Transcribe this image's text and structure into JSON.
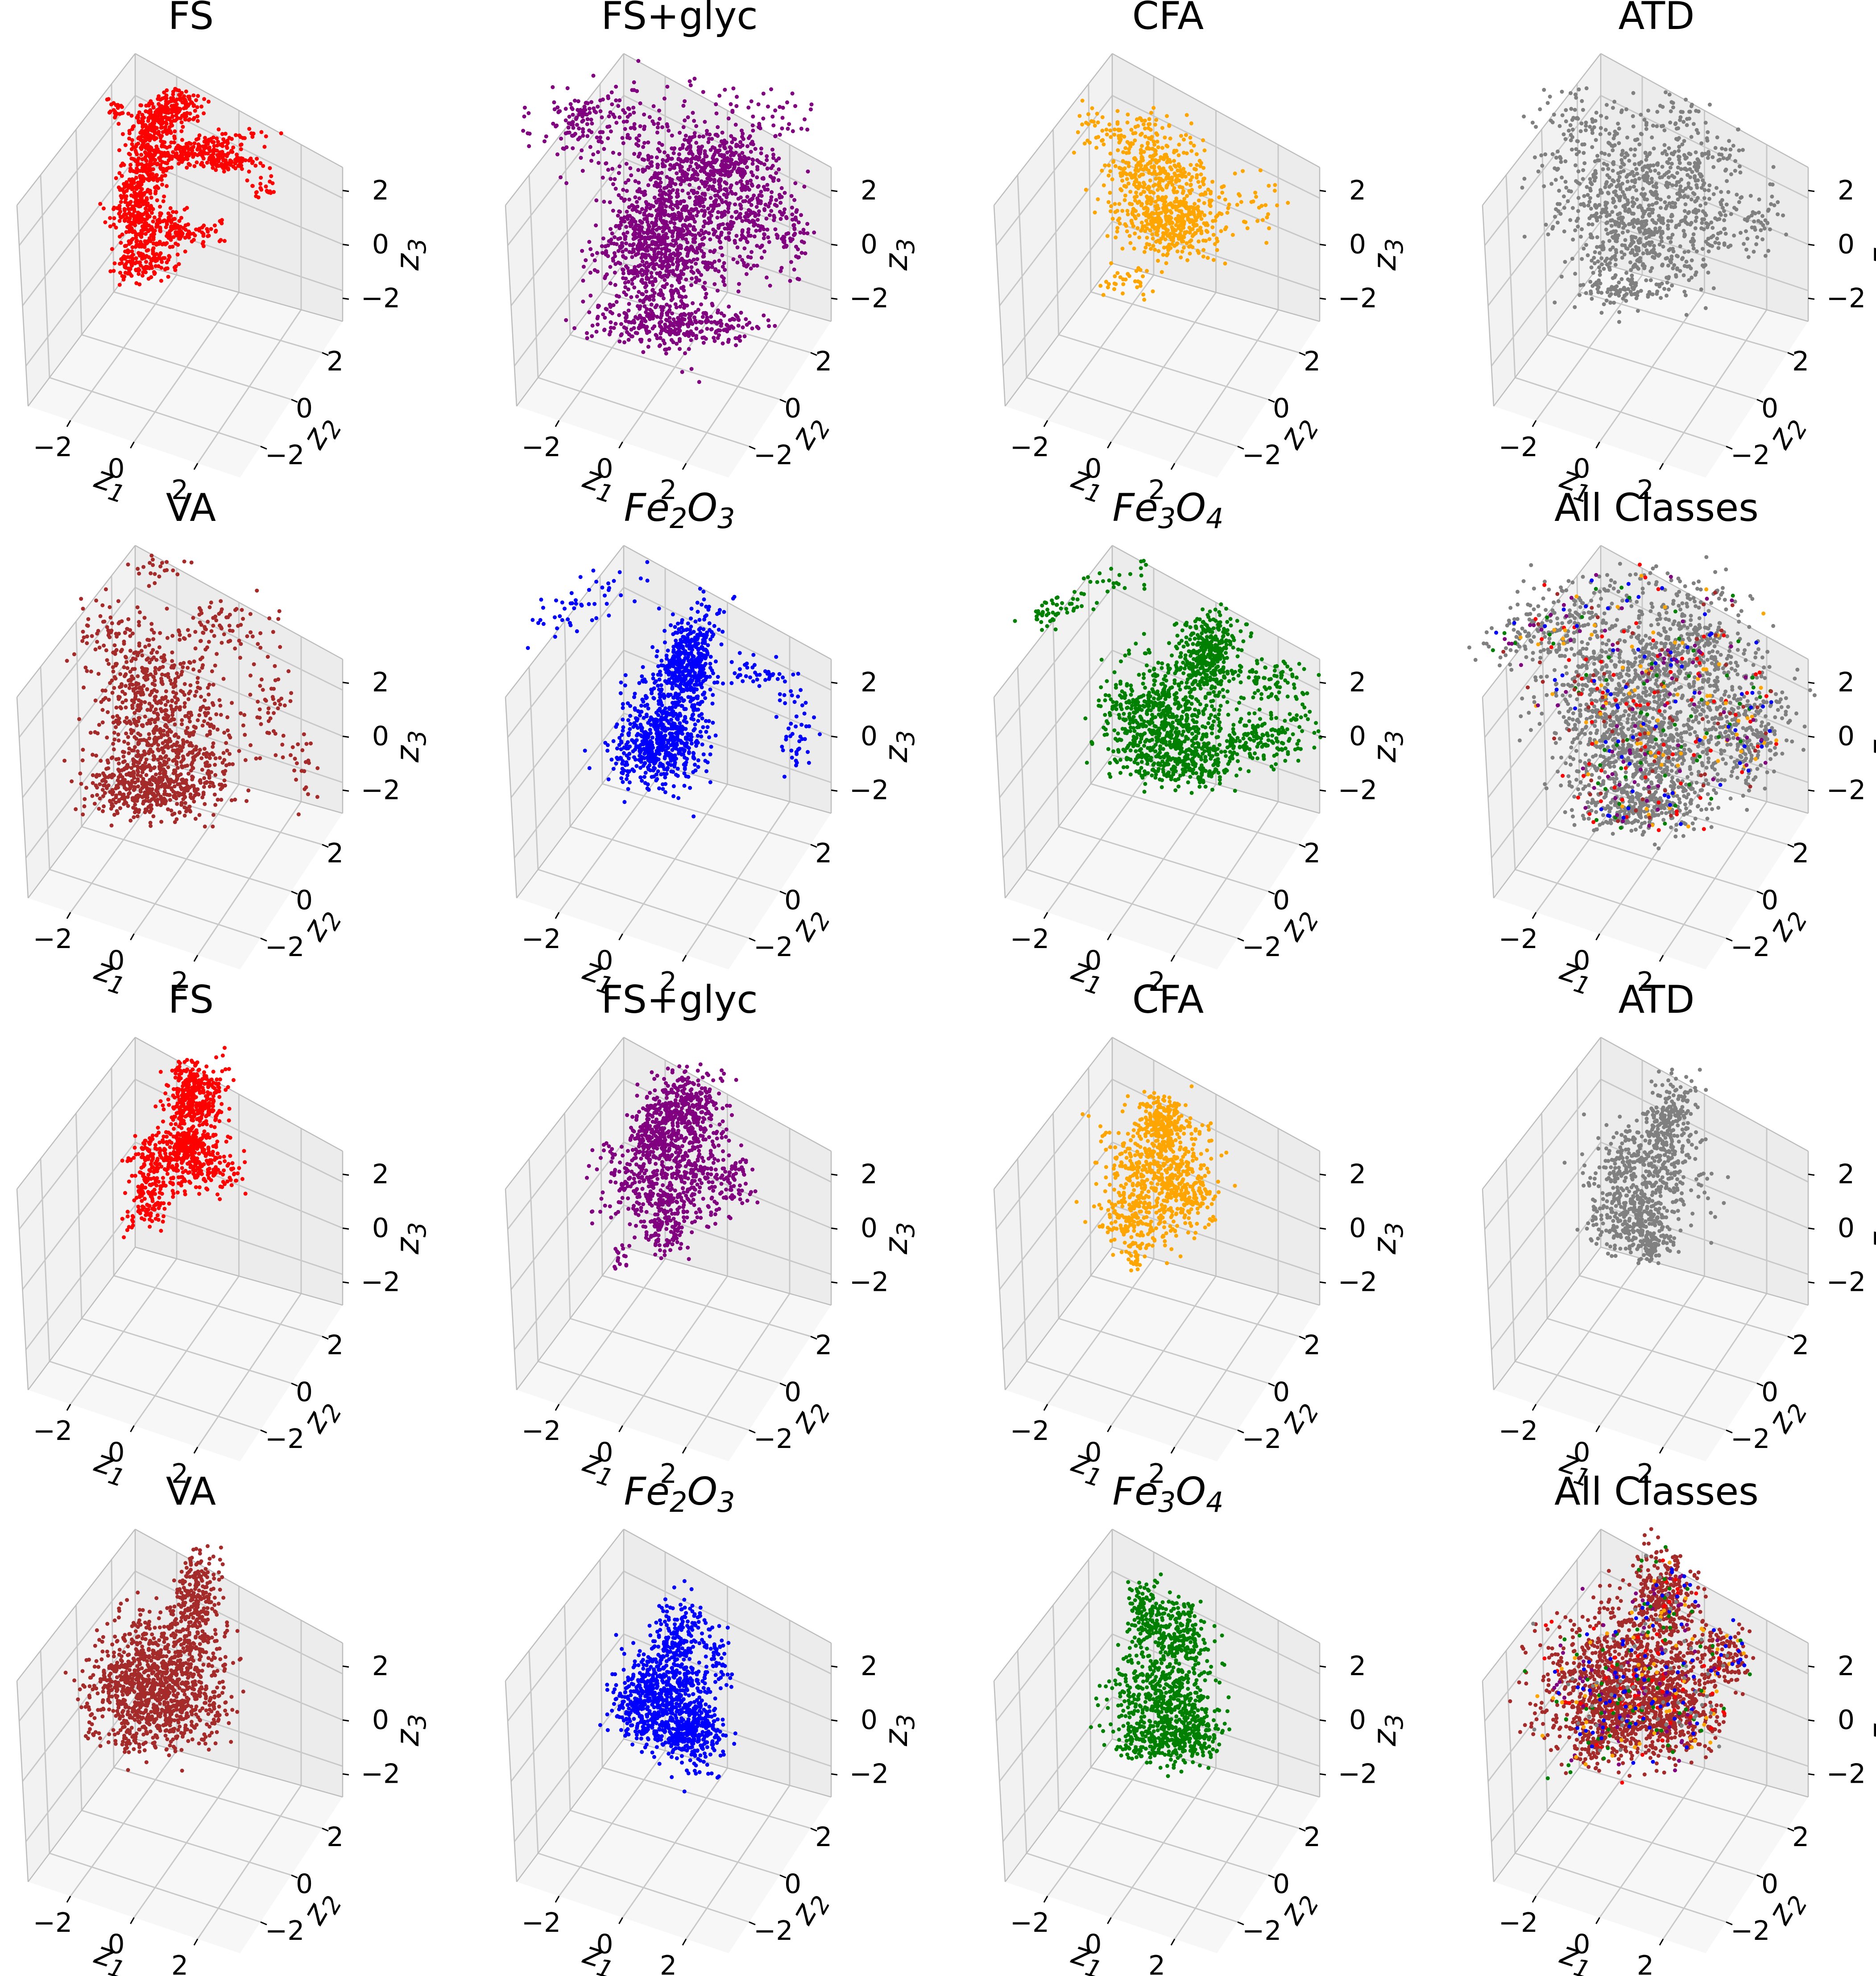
{
  "figure": {
    "rows": 4,
    "cols": 4
  },
  "chart_data": [
    {
      "type": "scatter",
      "projection": "3d",
      "title": "FS",
      "title_style": "normal",
      "color": "#ff0000",
      "shape": "fs_a",
      "xlabel": "z1",
      "ylabel": "z2",
      "zlabel": "z3",
      "xticks": [
        "−2",
        "0",
        "2"
      ],
      "yticks": [
        "−2",
        "0",
        "2"
      ],
      "zticks": [
        "−2",
        "0",
        "2"
      ],
      "xlim": [
        -3,
        3
      ],
      "ylim": [
        -3,
        3
      ],
      "zlim": [
        -3,
        3
      ]
    },
    {
      "type": "scatter",
      "projection": "3d",
      "title": "FS+glyc",
      "title_style": "normal",
      "color": "#800080",
      "shape": "glyc_a",
      "xlabel": "z1",
      "ylabel": "z2",
      "zlabel": "z3",
      "xticks": [
        "−2",
        "0",
        "2"
      ],
      "yticks": [
        "−2",
        "0",
        "2"
      ],
      "zticks": [
        "−2",
        "0",
        "2"
      ],
      "xlim": [
        -3,
        3
      ],
      "ylim": [
        -3,
        3
      ],
      "zlim": [
        -3,
        3
      ]
    },
    {
      "type": "scatter",
      "projection": "3d",
      "title": "CFA",
      "title_style": "normal",
      "color": "#ffa500",
      "shape": "cfa_a",
      "xlabel": "z1",
      "ylabel": "z2",
      "zlabel": "z3",
      "xticks": [
        "−2",
        "0",
        "2"
      ],
      "yticks": [
        "−2",
        "0",
        "2"
      ],
      "zticks": [
        "−2",
        "0",
        "2"
      ],
      "xlim": [
        -3,
        3
      ],
      "ylim": [
        -3,
        3
      ],
      "zlim": [
        -3,
        3
      ]
    },
    {
      "type": "scatter",
      "projection": "3d",
      "title": "ATD",
      "title_style": "normal",
      "color": "#808080",
      "shape": "atd_a",
      "xlabel": "z1",
      "ylabel": "z2",
      "zlabel": "–",
      "xticks": [
        "−2",
        "0",
        "2"
      ],
      "yticks": [
        "−2",
        "0",
        "2"
      ],
      "zticks": [
        "−2",
        "0",
        "2"
      ],
      "xlim": [
        -3,
        3
      ],
      "ylim": [
        -3,
        3
      ],
      "zlim": [
        -3,
        3
      ]
    },
    {
      "type": "scatter",
      "projection": "3d",
      "title": "VA",
      "title_style": "normal",
      "color": "#a52a2a",
      "shape": "va_a",
      "xlabel": "z1",
      "ylabel": "z2",
      "zlabel": "z3",
      "xticks": [
        "−2",
        "0",
        "2"
      ],
      "yticks": [
        "−2",
        "0",
        "2"
      ],
      "zticks": [
        "−2",
        "0",
        "2"
      ],
      "xlim": [
        -3,
        3
      ],
      "ylim": [
        -3,
        3
      ],
      "zlim": [
        -3,
        3
      ]
    },
    {
      "type": "scatter",
      "projection": "3d",
      "title": "Fe2O3",
      "title_style": "italic",
      "color": "#0000ff",
      "shape": "fe2_a",
      "xlabel": "z1",
      "ylabel": "z2",
      "zlabel": "z3",
      "xticks": [
        "−2",
        "0",
        "2"
      ],
      "yticks": [
        "−2",
        "0",
        "2"
      ],
      "zticks": [
        "−2",
        "0",
        "2"
      ],
      "xlim": [
        -3,
        3
      ],
      "ylim": [
        -3,
        3
      ],
      "zlim": [
        -3,
        3
      ]
    },
    {
      "type": "scatter",
      "projection": "3d",
      "title": "Fe3O4",
      "title_style": "italic",
      "color": "#008000",
      "shape": "fe3_a",
      "xlabel": "z1",
      "ylabel": "z2",
      "zlabel": "z3",
      "xticks": [
        "−2",
        "0",
        "2"
      ],
      "yticks": [
        "−2",
        "0",
        "2"
      ],
      "zticks": [
        "−2",
        "0",
        "2"
      ],
      "xlim": [
        -3,
        3
      ],
      "ylim": [
        -3,
        3
      ],
      "zlim": [
        -3,
        3
      ]
    },
    {
      "type": "scatter",
      "projection": "3d",
      "title": "All Classes",
      "title_style": "normal",
      "color": "#808080",
      "mix": [
        "#800080",
        "#ff0000",
        "#0000ff",
        "#008000",
        "#ffa500",
        "#a52a2a"
      ],
      "shape": "all_a",
      "xlabel": "z1",
      "ylabel": "z2",
      "zlabel": "–",
      "xticks": [
        "−2",
        "0",
        "2"
      ],
      "yticks": [
        "−2",
        "0",
        "2"
      ],
      "zticks": [
        "−2",
        "0",
        "2"
      ],
      "xlim": [
        -3,
        3
      ],
      "ylim": [
        -3,
        3
      ],
      "zlim": [
        -3,
        3
      ]
    },
    {
      "type": "scatter",
      "projection": "3d",
      "title": "FS",
      "title_style": "normal",
      "color": "#ff0000",
      "shape": "fs_b",
      "xlabel": "z1",
      "ylabel": "z2",
      "zlabel": "z3",
      "xticks": [
        "−2",
        "0",
        "2"
      ],
      "yticks": [
        "−2",
        "0",
        "2"
      ],
      "zticks": [
        "−2",
        "0",
        "2"
      ],
      "xlim": [
        -3,
        3
      ],
      "ylim": [
        -3,
        3
      ],
      "zlim": [
        -3,
        3
      ]
    },
    {
      "type": "scatter",
      "projection": "3d",
      "title": "FS+glyc",
      "title_style": "normal",
      "color": "#800080",
      "shape": "glyc_b",
      "xlabel": "z1",
      "ylabel": "z2",
      "zlabel": "z3",
      "xticks": [
        "−2",
        "0",
        "2"
      ],
      "yticks": [
        "−2",
        "0",
        "2"
      ],
      "zticks": [
        "−2",
        "0",
        "2"
      ],
      "xlim": [
        -3,
        3
      ],
      "ylim": [
        -3,
        3
      ],
      "zlim": [
        -3,
        3
      ]
    },
    {
      "type": "scatter",
      "projection": "3d",
      "title": "CFA",
      "title_style": "normal",
      "color": "#ffa500",
      "shape": "cfa_b",
      "xlabel": "z1",
      "ylabel": "z2",
      "zlabel": "z3",
      "xticks": [
        "−2",
        "0",
        "2"
      ],
      "yticks": [
        "−2",
        "0",
        "2"
      ],
      "zticks": [
        "−2",
        "0",
        "2"
      ],
      "xlim": [
        -3,
        3
      ],
      "ylim": [
        -3,
        3
      ],
      "zlim": [
        -3,
        3
      ]
    },
    {
      "type": "scatter",
      "projection": "3d",
      "title": "ATD",
      "title_style": "normal",
      "color": "#808080",
      "shape": "atd_b",
      "xlabel": "z1",
      "ylabel": "z2",
      "zlabel": "–",
      "xticks": [
        "−2",
        "0",
        "2"
      ],
      "yticks": [
        "−2",
        "0",
        "2"
      ],
      "zticks": [
        "−2",
        "0",
        "2"
      ],
      "xlim": [
        -3,
        3
      ],
      "ylim": [
        -3,
        3
      ],
      "zlim": [
        -3,
        3
      ]
    },
    {
      "type": "scatter",
      "projection": "3d",
      "title": "VA",
      "title_style": "normal",
      "color": "#a52a2a",
      "shape": "va_b",
      "xlabel": "z1",
      "ylabel": "z2",
      "zlabel": "z3",
      "xticks": [
        "−2",
        "0",
        "2"
      ],
      "yticks": [
        "−2",
        "0",
        "2"
      ],
      "zticks": [
        "−2",
        "0",
        "2"
      ],
      "xlim": [
        -3,
        3
      ],
      "ylim": [
        -3,
        3
      ],
      "zlim": [
        -3,
        3
      ]
    },
    {
      "type": "scatter",
      "projection": "3d",
      "title": "Fe2O3",
      "title_style": "italic",
      "color": "#0000ff",
      "shape": "fe2_b",
      "xlabel": "z1",
      "ylabel": "z2",
      "zlabel": "z3",
      "xticks": [
        "−2",
        "0",
        "2"
      ],
      "yticks": [
        "−2",
        "0",
        "2"
      ],
      "zticks": [
        "−2",
        "0",
        "2"
      ],
      "xlim": [
        -3,
        3
      ],
      "ylim": [
        -3,
        3
      ],
      "zlim": [
        -3,
        3
      ]
    },
    {
      "type": "scatter",
      "projection": "3d",
      "title": "Fe3O4",
      "title_style": "italic",
      "color": "#008000",
      "shape": "fe3_b",
      "xlabel": "z1",
      "ylabel": "z2",
      "zlabel": "z3",
      "xticks": [
        "−2",
        "0",
        "2"
      ],
      "yticks": [
        "−2",
        "0",
        "2"
      ],
      "zticks": [
        "−2",
        "0",
        "2"
      ],
      "xlim": [
        -3,
        3
      ],
      "ylim": [
        -3,
        3
      ],
      "zlim": [
        -3,
        3
      ]
    },
    {
      "type": "scatter",
      "projection": "3d",
      "title": "All Classes",
      "title_style": "normal",
      "color": "#a52a2a",
      "mix": [
        "#800080",
        "#ffa500",
        "#0000ff",
        "#008000",
        "#ff0000",
        "#808080"
      ],
      "shape": "all_b",
      "xlabel": "z1",
      "ylabel": "z2",
      "zlabel": "–",
      "xticks": [
        "−2",
        "0",
        "2"
      ],
      "yticks": [
        "−2",
        "0",
        "2"
      ],
      "zticks": [
        "−2",
        "0",
        "2"
      ],
      "xlim": [
        -3,
        3
      ],
      "ylim": [
        -3,
        3
      ],
      "zlim": [
        -3,
        3
      ]
    }
  ]
}
